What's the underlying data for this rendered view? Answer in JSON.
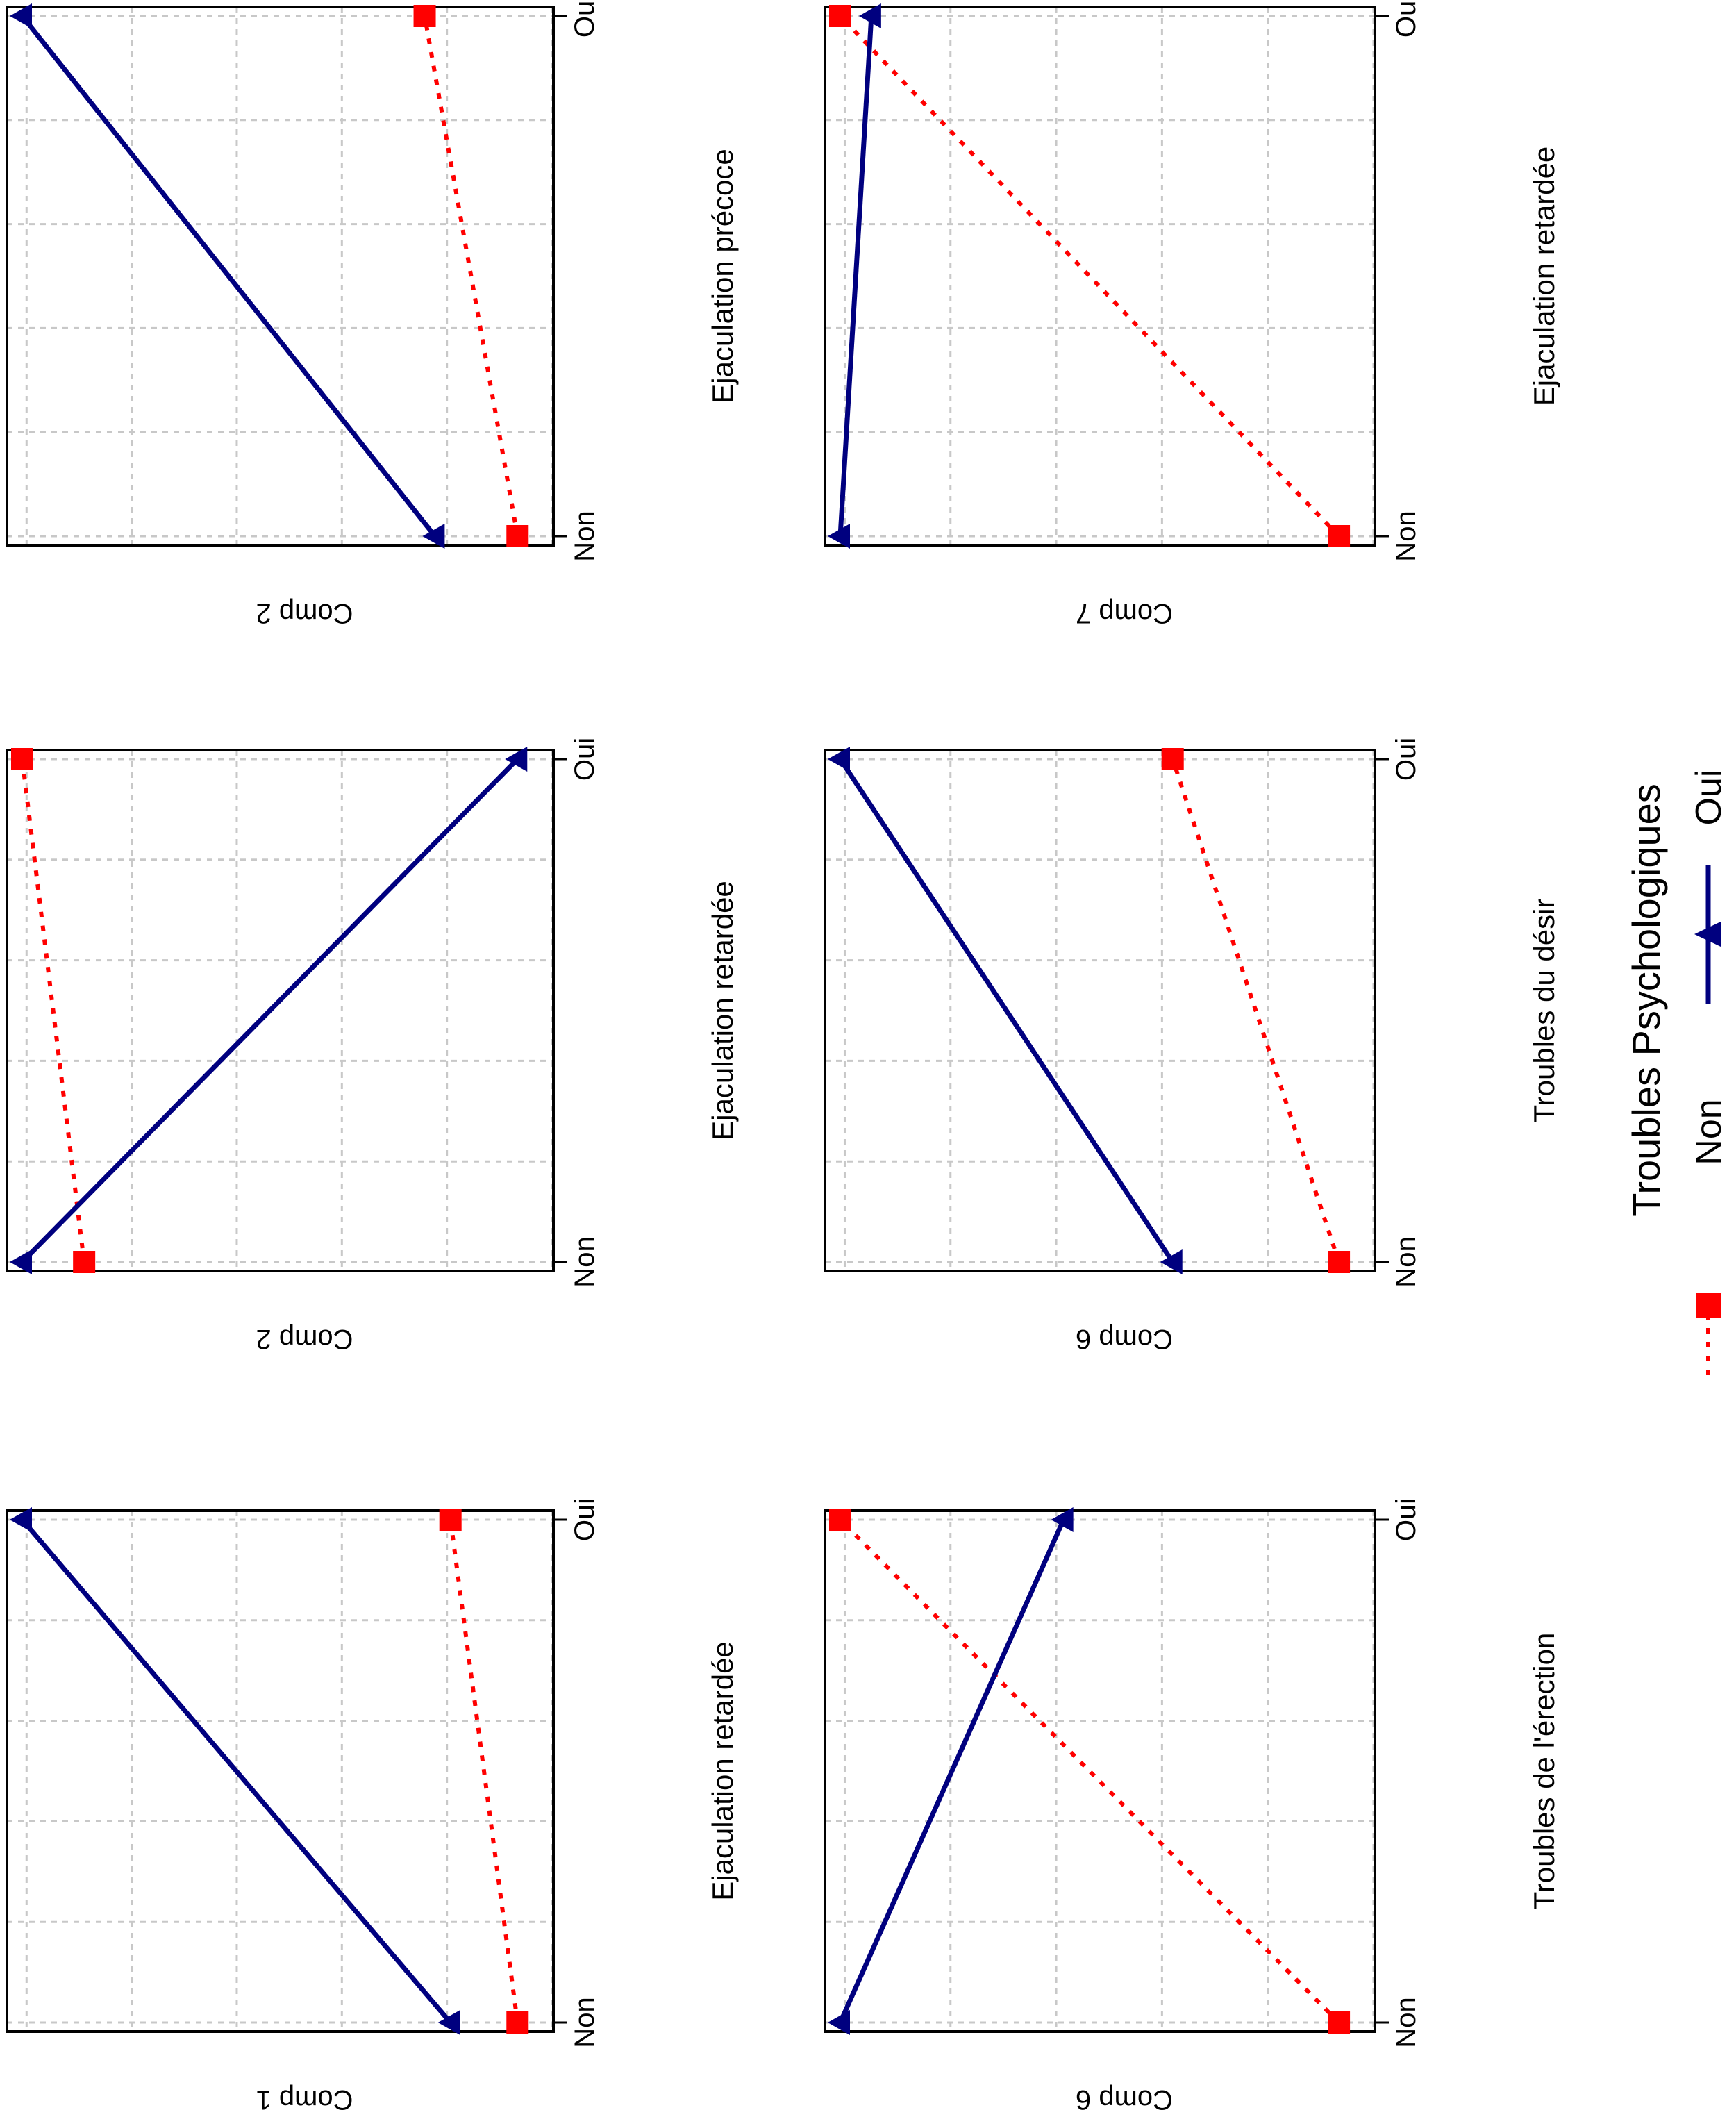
{
  "chart_data": [
    {
      "type": "line",
      "xlabel": "Ejaculation retardée",
      "ylabel": "Comp 1",
      "categories": [
        "Non",
        "Oui"
      ],
      "ylim": [
        0,
        1
      ],
      "grid": true,
      "series": [
        {
          "name": "Non",
          "values": [
            0.04,
            0.17
          ]
        },
        {
          "name": "Oui",
          "values": [
            0.17,
            1.0
          ]
        }
      ]
    },
    {
      "type": "line",
      "xlabel": "Ejaculation retardée",
      "ylabel": "Comp 2",
      "categories": [
        "Non",
        "Oui"
      ],
      "ylim": [
        0,
        1
      ],
      "grid": true,
      "series": [
        {
          "name": "Non",
          "values": [
            0.88,
            1.0
          ]
        },
        {
          "name": "Oui",
          "values": [
            1.0,
            0.04
          ]
        }
      ]
    },
    {
      "type": "line",
      "xlabel": "Ejaculation précoce",
      "ylabel": "Comp 2",
      "categories": [
        "Non",
        "Oui"
      ],
      "ylim": [
        0,
        1
      ],
      "grid": true,
      "series": [
        {
          "name": "Non",
          "values": [
            0.04,
            0.22
          ]
        },
        {
          "name": "Oui",
          "values": [
            0.2,
            1.0
          ]
        }
      ]
    },
    {
      "type": "line",
      "xlabel": "Troubles de l'érection",
      "ylabel": "Comp 6",
      "categories": [
        "Non",
        "Oui"
      ],
      "ylim": [
        0,
        1
      ],
      "grid": true,
      "series": [
        {
          "name": "Non",
          "values": [
            0.04,
            1.0
          ]
        },
        {
          "name": "Oui",
          "values": [
            1.0,
            0.57
          ]
        }
      ]
    },
    {
      "type": "line",
      "xlabel": "Troubles du désir",
      "ylabel": "Comp 6",
      "categories": [
        "Non",
        "Oui"
      ],
      "ylim": [
        0,
        1
      ],
      "grid": true,
      "series": [
        {
          "name": "Non",
          "values": [
            0.04,
            0.36
          ]
        },
        {
          "name": "Oui",
          "values": [
            0.36,
            1.0
          ]
        }
      ]
    },
    {
      "type": "line",
      "xlabel": "Ejaculation retardée",
      "ylabel": "Comp 7",
      "categories": [
        "Non",
        "Oui"
      ],
      "ylim": [
        0,
        1
      ],
      "grid": true,
      "series": [
        {
          "name": "Non",
          "values": [
            0.04,
            1.0
          ]
        },
        {
          "name": "Oui",
          "values": [
            1.0,
            0.94
          ]
        }
      ]
    }
  ],
  "legend": {
    "title": "Troubles Psychologiques",
    "items": [
      {
        "label": "Non",
        "color": "#ff0000",
        "style": "dotted",
        "marker": "square"
      },
      {
        "label": "Oui",
        "color": "#00007f",
        "style": "solid",
        "marker": "triangle"
      }
    ],
    "placement": "bottom-right"
  },
  "colors": {
    "non": "#ff0000",
    "oui": "#00007f",
    "grid": "#c8c8c8"
  },
  "orientation": "rotated 90° clockwise"
}
